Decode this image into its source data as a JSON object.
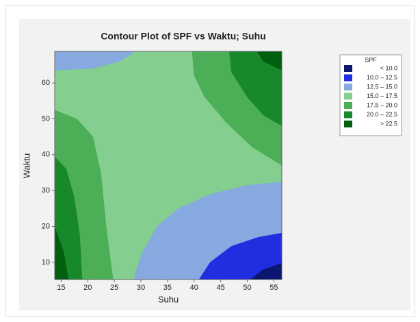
{
  "chart_data": {
    "type": "contour",
    "title": "Contour Plot of SPF vs Waktu; Suhu",
    "xlabel": "Suhu",
    "ylabel": "Waktu",
    "xlim": [
      13.8,
      56.5
    ],
    "ylim": [
      5.2,
      68.8
    ],
    "xticks": [
      15,
      20,
      25,
      30,
      35,
      40,
      45,
      50,
      55
    ],
    "yticks": [
      10,
      20,
      30,
      40,
      50,
      60
    ],
    "legend_title": "SPF",
    "levels": [
      {
        "label": "< 10.0",
        "color": "#0b1670"
      },
      {
        "label": "10.0 – 12.5",
        "color": "#1f2fe0"
      },
      {
        "label": "12.5 – 15.0",
        "color": "#86a9df"
      },
      {
        "label": "15.0 – 17.5",
        "color": "#84cf8f"
      },
      {
        "label": "17.5 – 20.0",
        "color": "#4caf58"
      },
      {
        "label": "20.0 – 22.5",
        "color": "#17892a"
      },
      {
        "label": "> 22.5",
        "color": "#006010"
      }
    ],
    "background_level": 3,
    "regions": [
      {
        "level": 2,
        "points": [
          [
            13.8,
            68.8
          ],
          [
            29,
            68.8
          ],
          [
            26,
            66
          ],
          [
            21,
            64
          ],
          [
            13.8,
            63.5
          ]
        ]
      },
      {
        "level": 4,
        "points": [
          [
            39.6,
            68.8
          ],
          [
            40,
            62
          ],
          [
            42,
            56
          ],
          [
            46,
            49
          ],
          [
            51,
            42
          ],
          [
            56.5,
            37
          ],
          [
            56.5,
            68.8
          ]
        ]
      },
      {
        "level": 5,
        "points": [
          [
            46.6,
            68.8
          ],
          [
            47,
            63
          ],
          [
            50,
            56
          ],
          [
            53,
            51
          ],
          [
            56.5,
            48
          ],
          [
            56.5,
            68.8
          ]
        ]
      },
      {
        "level": 6,
        "points": [
          [
            51.8,
            68.8
          ],
          [
            53,
            66
          ],
          [
            56.5,
            63.5
          ],
          [
            56.5,
            68.8
          ]
        ]
      },
      {
        "level": 4,
        "points": [
          [
            13.8,
            52.5
          ],
          [
            18,
            50
          ],
          [
            21,
            45
          ],
          [
            22.5,
            35
          ],
          [
            23.5,
            20
          ],
          [
            24.8,
            5.2
          ],
          [
            13.8,
            5.2
          ]
        ]
      },
      {
        "level": 5,
        "points": [
          [
            13.8,
            39.5
          ],
          [
            16,
            36
          ],
          [
            17.5,
            28
          ],
          [
            18.5,
            18
          ],
          [
            19,
            5.2
          ],
          [
            13.8,
            5.2
          ]
        ]
      },
      {
        "level": 6,
        "points": [
          [
            13.8,
            20
          ],
          [
            15.5,
            13
          ],
          [
            16.4,
            5.2
          ],
          [
            13.8,
            5.2
          ]
        ]
      },
      {
        "level": 2,
        "points": [
          [
            28.6,
            5.2
          ],
          [
            30,
            12
          ],
          [
            33,
            20
          ],
          [
            37,
            25
          ],
          [
            43,
            29
          ],
          [
            50,
            31.5
          ],
          [
            56.5,
            32.5
          ],
          [
            56.5,
            5.2
          ]
        ]
      },
      {
        "level": 1,
        "points": [
          [
            40.9,
            5.2
          ],
          [
            43,
            10
          ],
          [
            47,
            14.5
          ],
          [
            52,
            17
          ],
          [
            56.5,
            18.2
          ],
          [
            56.5,
            5.2
          ]
        ]
      },
      {
        "level": 0,
        "points": [
          [
            50.5,
            5.2
          ],
          [
            53,
            8
          ],
          [
            56.5,
            9.8
          ],
          [
            56.5,
            5.2
          ]
        ]
      }
    ]
  }
}
